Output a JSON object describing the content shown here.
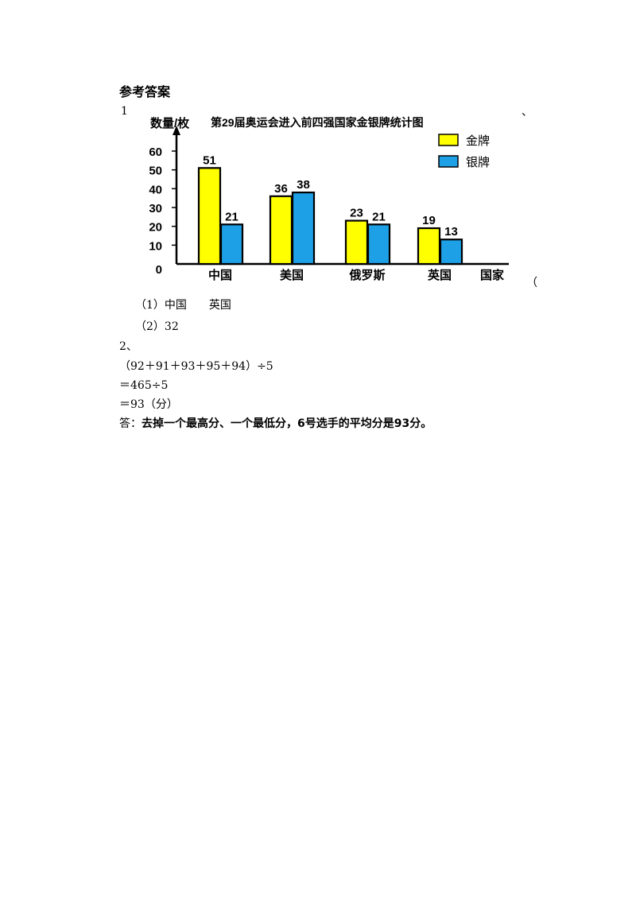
{
  "heading": "参考答案",
  "q1": {
    "number": "1",
    "trailing_mark": "、",
    "side_mark": "（",
    "answer_1": "（1）中国　　英国",
    "answer_2": "（2）32"
  },
  "q2": {
    "number": "2、",
    "line_1": "（92＋91＋93＋95＋94）÷5",
    "line_2": "＝465÷5",
    "line_3": "＝93（分）",
    "answer_prefix": "答：",
    "answer_text": "去掉一个最高分、一个最低分，6号选手的平均分是93分。"
  },
  "chart_data": {
    "type": "bar",
    "title": "第29届奥运会进入前四强国家金银牌统计图",
    "ylabel": "数量/枚",
    "xlabel": "国家",
    "ylim": [
      0,
      60
    ],
    "y_ticks": [
      0,
      10,
      20,
      30,
      40,
      50,
      60
    ],
    "grid": false,
    "legend_position": "top-right",
    "categories": [
      "中国",
      "美国",
      "俄罗斯",
      "英国"
    ],
    "series": [
      {
        "name": "金牌",
        "color": "#ffff00",
        "values": [
          51,
          36,
          23,
          19
        ]
      },
      {
        "name": "银牌",
        "color": "#1ea0e6",
        "values": [
          21,
          38,
          21,
          13
        ]
      }
    ]
  }
}
